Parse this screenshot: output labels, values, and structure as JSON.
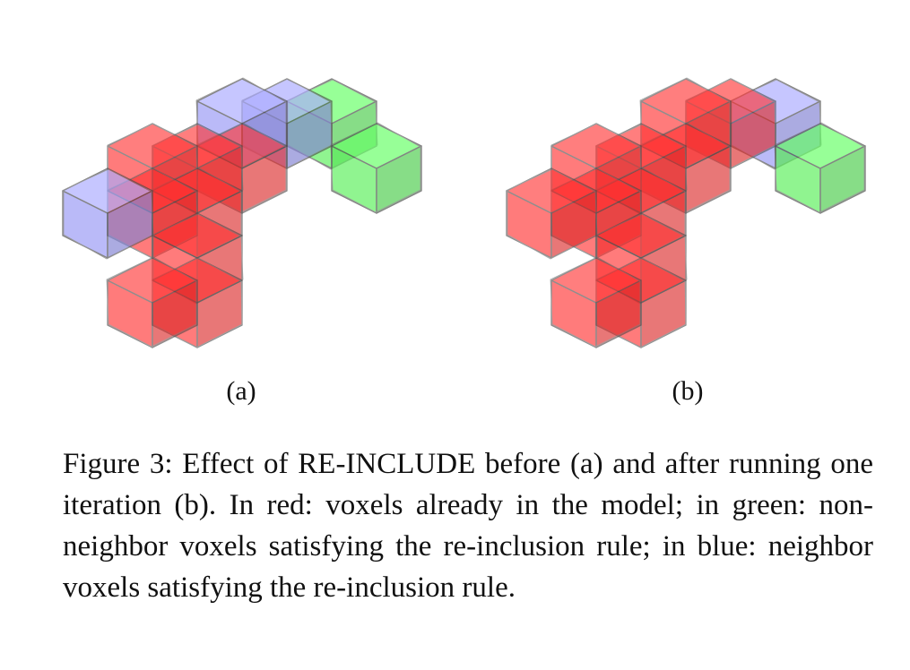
{
  "colors": {
    "red": "#ff2b2b",
    "green": "#5cf05c",
    "blue": "#9a9af5"
  },
  "panels": [
    {
      "label": "(a)",
      "voxels": [
        {
          "col": 3,
          "row": 5,
          "color": "red"
        },
        {
          "col": 4,
          "row": 5,
          "color": "red"
        },
        {
          "col": 4,
          "row": 4,
          "color": "red"
        },
        {
          "col": 4,
          "row": 3,
          "color": "red"
        },
        {
          "col": 3,
          "row": 3,
          "color": "red"
        },
        {
          "col": 4,
          "row": 2,
          "color": "red"
        },
        {
          "col": 5,
          "row": 2,
          "color": "red"
        },
        {
          "col": 3,
          "row": 2,
          "color": "red"
        },
        {
          "col": 2,
          "row": 3,
          "color": "blue"
        },
        {
          "col": 5,
          "row": 1,
          "color": "blue"
        },
        {
          "col": 6,
          "row": 1,
          "color": "blue"
        },
        {
          "col": 7,
          "row": 1,
          "color": "green"
        },
        {
          "col": 8,
          "row": 2,
          "color": "green"
        }
      ]
    },
    {
      "label": "(b)",
      "voxels": [
        {
          "col": 3,
          "row": 5,
          "color": "red"
        },
        {
          "col": 4,
          "row": 5,
          "color": "red"
        },
        {
          "col": 4,
          "row": 4,
          "color": "red"
        },
        {
          "col": 4,
          "row": 3,
          "color": "red"
        },
        {
          "col": 3,
          "row": 3,
          "color": "red"
        },
        {
          "col": 4,
          "row": 2,
          "color": "red"
        },
        {
          "col": 5,
          "row": 2,
          "color": "red"
        },
        {
          "col": 3,
          "row": 2,
          "color": "red"
        },
        {
          "col": 2,
          "row": 3,
          "color": "red"
        },
        {
          "col": 5,
          "row": 1,
          "color": "red"
        },
        {
          "col": 6,
          "row": 1,
          "color": "red"
        },
        {
          "col": 7,
          "row": 1,
          "color": "blue"
        },
        {
          "col": 8,
          "row": 2,
          "color": "green"
        }
      ]
    }
  ],
  "caption": "Figure 3: Effect of RE-INCLUDE before (a) and after run­ning one iteration (b). In red: voxels already in the model; in green: non-neighbor voxels satisfying the re-inclusion rule; in blue: neighbor voxels satisfying the re-inclusion rule."
}
